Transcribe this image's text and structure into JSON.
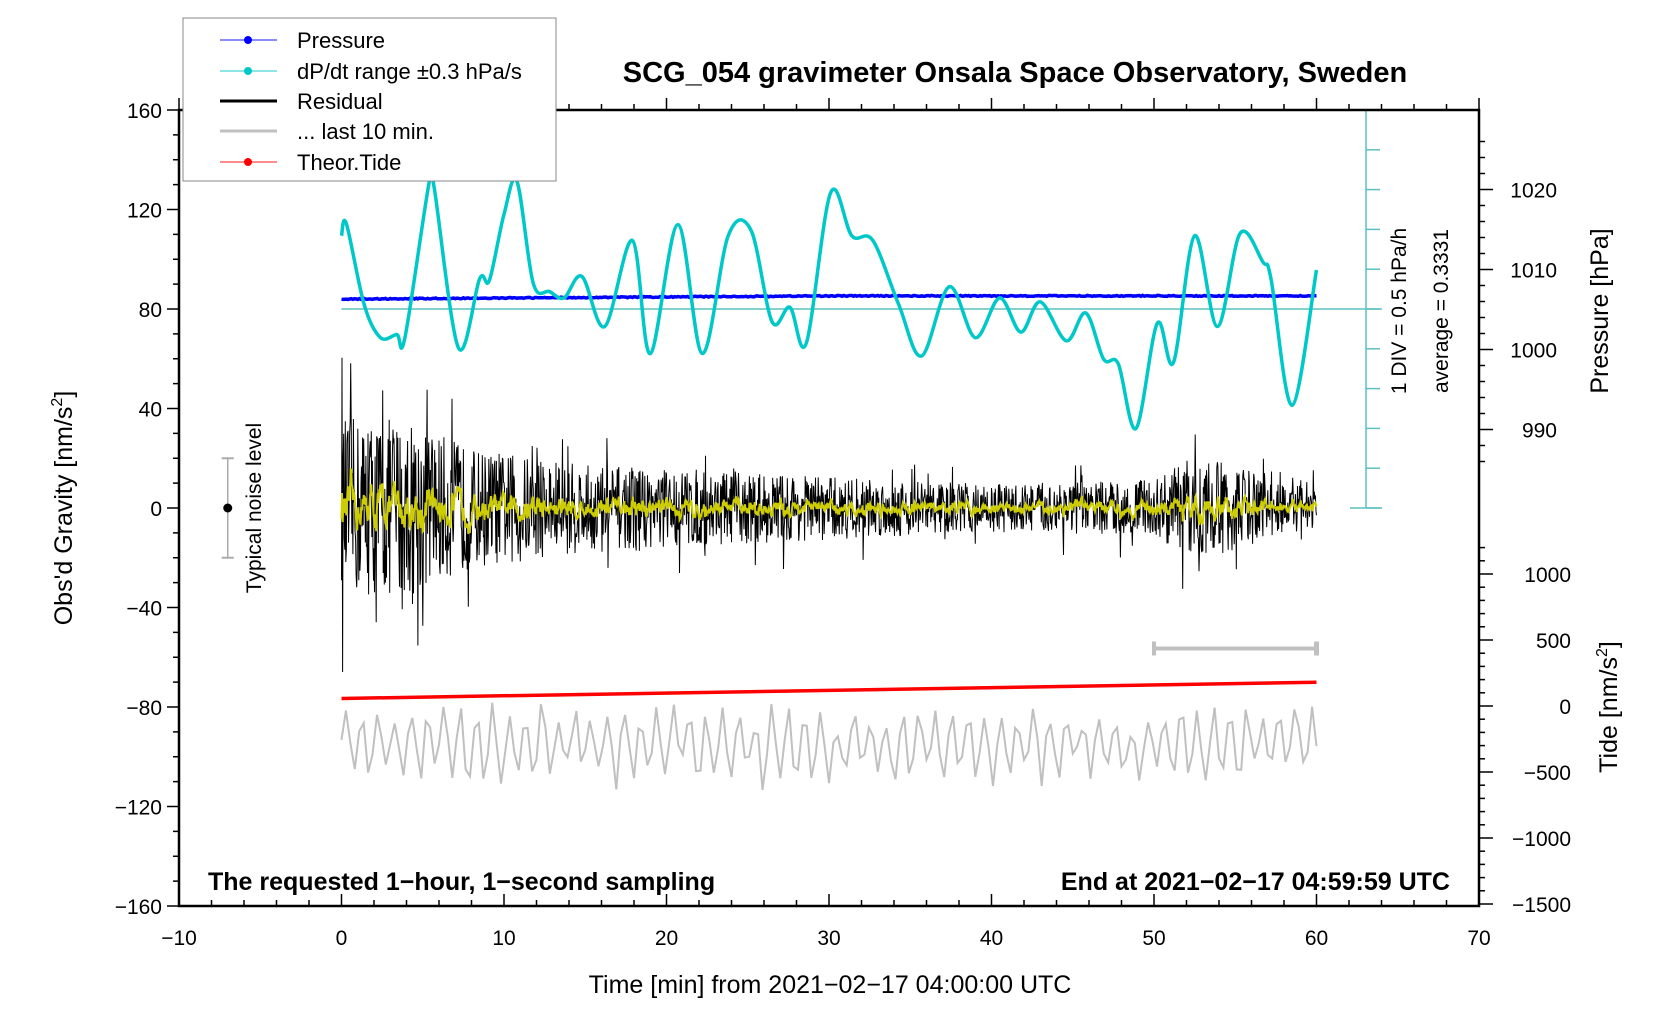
{
  "chart_data": {
    "type": "line",
    "title": "SCG_054 gravimeter Onsala Space Observatory, Sweden",
    "xlabel": "Time [min] from 2021−02−17 04:00:00 UTC",
    "ylabel_left": "Obs'd Gravity [nm/s",
    "ylabel_left_sup": "2",
    "ylabel_left_end": "]",
    "ylabel_right_pressure": "Pressure [hPa]",
    "ylabel_right_tide": "Tide [nm/s",
    "ylabel_right_tide_sup": "2",
    "ylabel_right_tide_end": "]",
    "xlim": [
      -10,
      70
    ],
    "ylim": [
      -160,
      160
    ],
    "x_ticks": [
      "−10",
      "0",
      "10",
      "20",
      "30",
      "40",
      "50",
      "60",
      "70"
    ],
    "x_tick_values": [
      -10,
      0,
      10,
      20,
      30,
      40,
      50,
      60,
      70
    ],
    "y_ticks": [
      "160",
      "120",
      "80",
      "40",
      "0",
      "−40",
      "−80",
      "−120",
      "−160"
    ],
    "y_tick_values": [
      160,
      120,
      80,
      40,
      0,
      -40,
      -80,
      -120,
      -160
    ],
    "pressure_ticks": [
      "1020",
      "1010",
      "1000",
      "990"
    ],
    "pressure_tick_values": [
      1020,
      1010,
      1000,
      990
    ],
    "tide_ticks": [
      "1000",
      "500",
      "0",
      "−500",
      "−1000",
      "−1500"
    ],
    "tide_tick_values": [
      1000,
      500,
      0,
      -500,
      -1000,
      -1500
    ],
    "legend": {
      "placement": "top-left",
      "items": [
        {
          "label": "Pressure",
          "color": "#0000ff"
        },
        {
          "label": "dP/dt range ±0.3 hPa/s",
          "color": "#00c8c8"
        },
        {
          "label": "Residual",
          "color": "#000000"
        },
        {
          "label": "... last 10 min.",
          "color": "#c0c0c0"
        },
        {
          "label": "Theor.Tide",
          "color": "#ff0000"
        }
      ]
    },
    "annotations": {
      "bottom_left": "The requested 1−hour, 1−second sampling",
      "bottom_right": "End at 2021−02−17 04:59:59 UTC",
      "div_label": "1 DIV = 0.5 hPa/h",
      "average_label": "average = 0.3331",
      "noise_label": "Typical noise level"
    },
    "noise_level": {
      "minute": -7,
      "range": [
        -20,
        20
      ]
    },
    "dpdt_baseline_gravity": 80,
    "dpdt_div_hpa_per_h": 0.5,
    "dpdt_div_gravity_units": 16,
    "series": [
      {
        "name": "Pressure",
        "unit": "hPa",
        "points": [
          [
            0,
            1006.3
          ],
          [
            15,
            1006.5
          ],
          [
            30,
            1006.7
          ],
          [
            45,
            1006.7
          ],
          [
            60,
            1006.7
          ]
        ]
      },
      {
        "name": "dP/dt",
        "unit": "hPa/h",
        "points": [
          [
            0,
            0.92
          ],
          [
            0.3,
            1.07
          ],
          [
            1.4,
            0.05
          ],
          [
            2.4,
            -0.36
          ],
          [
            3.4,
            -0.32
          ],
          [
            3.9,
            -0.36
          ],
          [
            5.4,
            1.6
          ],
          [
            5.7,
            1.53
          ],
          [
            7.2,
            -0.49
          ],
          [
            8.5,
            0.38
          ],
          [
            9.1,
            0.36
          ],
          [
            10,
            1.19
          ],
          [
            10.8,
            1.6
          ],
          [
            11.8,
            0.32
          ],
          [
            12.8,
            0.22
          ],
          [
            13.7,
            0.14
          ],
          [
            14.8,
            0.41
          ],
          [
            16.2,
            -0.22
          ],
          [
            17.9,
            0.86
          ],
          [
            19,
            -0.56
          ],
          [
            20.7,
            1.06
          ],
          [
            22.2,
            -0.56
          ],
          [
            23.8,
            0.92
          ],
          [
            25.2,
            0.99
          ],
          [
            26.5,
            -0.16
          ],
          [
            27.6,
            0.02
          ],
          [
            28.6,
            -0.43
          ],
          [
            30.1,
            1.46
          ],
          [
            31.4,
            0.92
          ],
          [
            32.7,
            0.86
          ],
          [
            34.3,
            0.05
          ],
          [
            35.7,
            -0.59
          ],
          [
            37.4,
            0.28
          ],
          [
            39,
            -0.36
          ],
          [
            40.5,
            0.14
          ],
          [
            41.8,
            -0.29
          ],
          [
            43,
            0.09
          ],
          [
            44.6,
            -0.4
          ],
          [
            45.8,
            -0.05
          ],
          [
            46.9,
            -0.63
          ],
          [
            47.8,
            -0.69
          ],
          [
            48.9,
            -1.5
          ],
          [
            50.2,
            -0.18
          ],
          [
            51.2,
            -0.67
          ],
          [
            52.5,
            0.92
          ],
          [
            53.9,
            -0.22
          ],
          [
            55.3,
            0.95
          ],
          [
            56.7,
            0.59
          ],
          [
            57.2,
            0.38
          ],
          [
            58.5,
            -1.21
          ],
          [
            60,
            0.49
          ]
        ]
      },
      {
        "name": "Residual",
        "unit": "nm/s2",
        "amplitude_envelope": [
          [
            0,
            45
          ],
          [
            4,
            45
          ],
          [
            8,
            30
          ],
          [
            15,
            22
          ],
          [
            25,
            18
          ],
          [
            40,
            12
          ],
          [
            50,
            14
          ],
          [
            52,
            25
          ],
          [
            55,
            22
          ],
          [
            57,
            14
          ],
          [
            60,
            10
          ]
        ]
      },
      {
        "name": "last 10 min",
        "unit": "nm/s2",
        "offset": -95,
        "amplitude": 14,
        "window_minutes": [
          50,
          60
        ]
      },
      {
        "name": "Theor.Tide",
        "unit": "nm/s2",
        "points": [
          [
            0,
            57
          ],
          [
            60,
            180
          ]
        ]
      }
    ]
  }
}
